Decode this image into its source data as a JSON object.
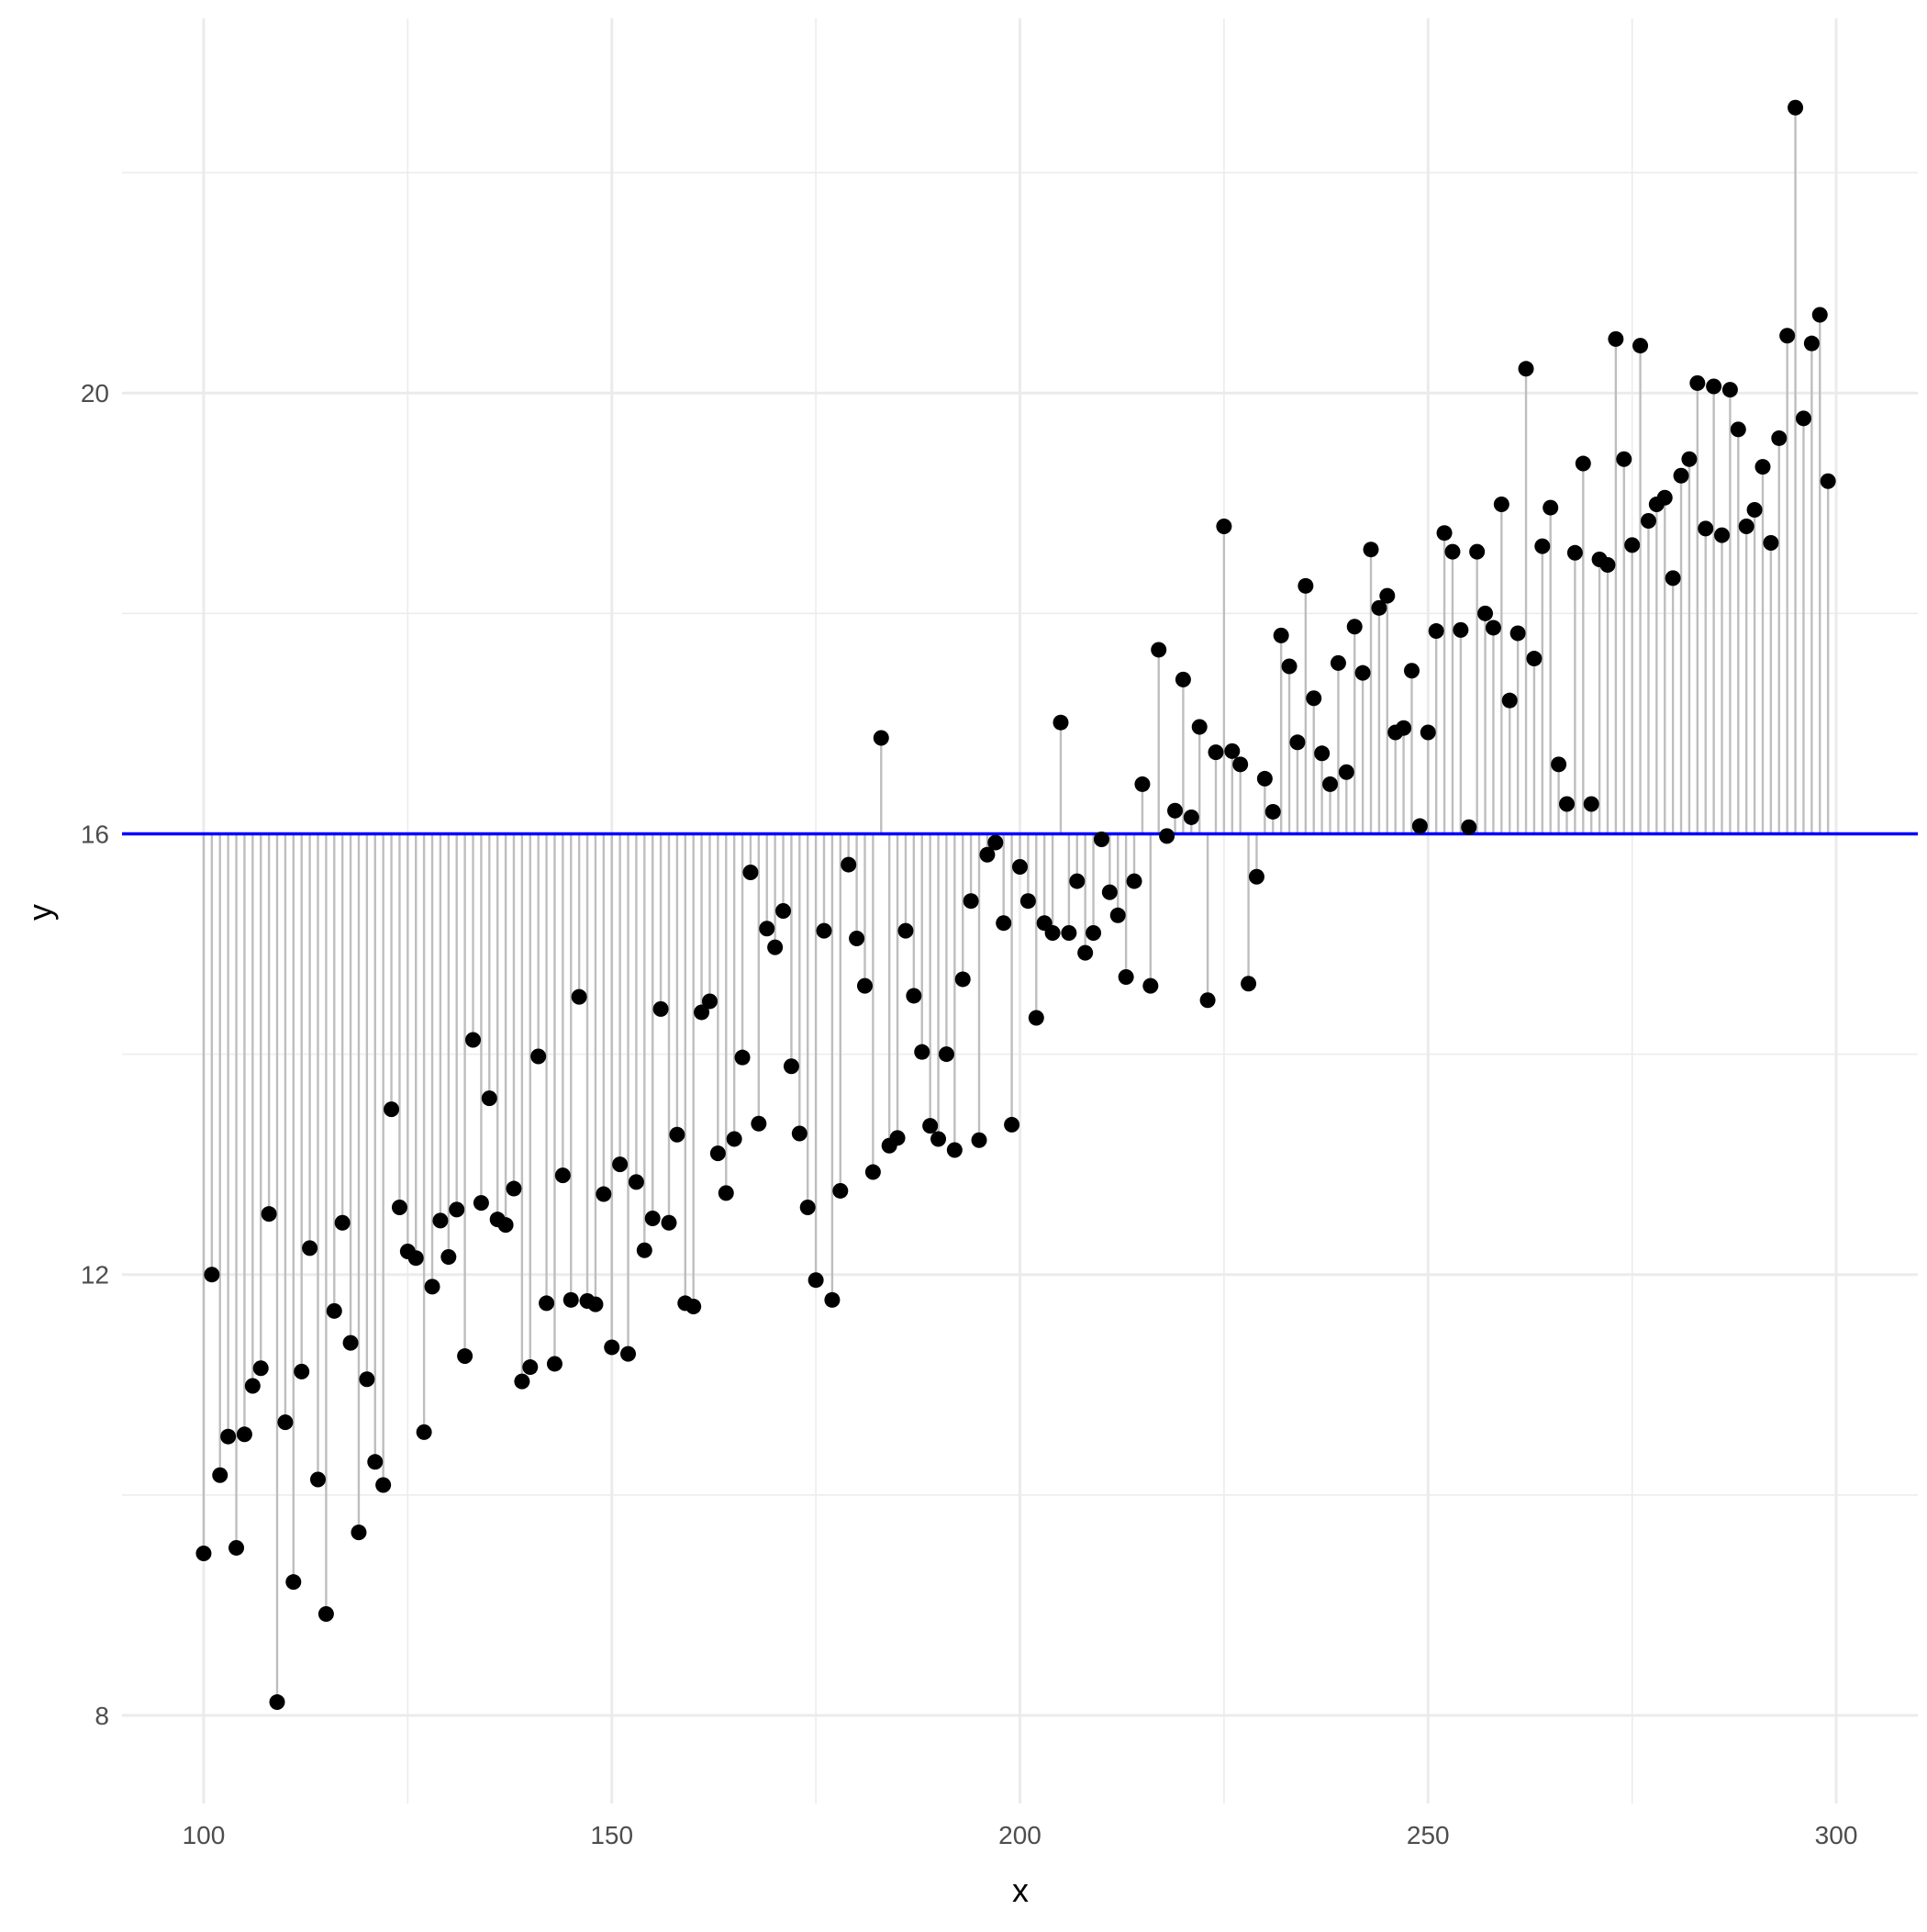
{
  "chart_data": {
    "type": "scatter",
    "title": "",
    "xlabel": "x",
    "ylabel": "y",
    "xlim": [
      90,
      310
    ],
    "ylim": [
      7.2,
      23.4
    ],
    "x_ticks": [
      100,
      150,
      200,
      250,
      300
    ],
    "y_ticks": [
      8,
      12,
      16,
      20
    ],
    "x_minor_ticks": [
      125,
      175,
      225,
      275
    ],
    "y_minor_ticks": [
      10,
      14,
      18,
      22
    ],
    "grid": true,
    "legend": "none",
    "baseline": 16,
    "baseline_color": "#0000ff",
    "point_color": "#000000",
    "stem_color": "#bebebe",
    "series": [
      {
        "x_start": 100,
        "x_step": 1,
        "values": [
          9.47,
          12.0,
          10.18,
          10.53,
          9.52,
          10.55,
          10.99,
          11.15,
          12.55,
          8.12,
          10.66,
          9.21,
          11.12,
          12.24,
          10.14,
          8.92,
          11.67,
          12.47,
          11.38,
          9.66,
          11.05,
          10.3,
          10.09,
          13.5,
          12.61,
          12.21,
          12.15,
          10.57,
          11.89,
          12.49,
          12.16,
          12.59,
          11.26,
          14.13,
          12.65,
          13.6,
          12.5,
          12.45,
          12.78,
          11.03,
          11.16,
          13.98,
          11.74,
          11.19,
          12.9,
          11.77,
          14.52,
          11.76,
          11.73,
          12.73,
          11.34,
          13.0,
          11.28,
          12.84,
          12.22,
          12.51,
          14.41,
          12.47,
          13.27,
          11.74,
          11.71,
          14.38,
          14.48,
          13.1,
          12.74,
          13.23,
          13.97,
          15.65,
          13.37,
          15.14,
          14.97,
          15.3,
          13.89,
          13.28,
          12.61,
          11.95,
          15.12,
          11.77,
          12.76,
          15.72,
          15.05,
          14.62,
          12.93,
          16.87,
          13.17,
          13.24,
          15.12,
          14.53,
          14.02,
          13.35,
          13.23,
          14.0,
          13.13,
          14.68,
          15.39,
          13.22,
          15.81,
          15.92,
          15.19,
          13.36,
          15.7,
          15.39,
          14.33,
          15.19,
          15.1,
          17.01,
          15.1,
          15.57,
          14.92,
          15.1,
          15.95,
          15.47,
          15.26,
          14.7,
          15.57,
          16.45,
          14.62,
          17.67,
          15.98,
          16.21,
          17.4,
          16.15,
          16.97,
          14.49,
          16.74,
          18.79,
          16.75,
          16.63,
          14.64,
          15.61,
          16.5,
          16.2,
          17.8,
          17.52,
          16.83,
          18.25,
          17.23,
          16.73,
          16.45,
          17.55,
          16.56,
          17.88,
          17.46,
          18.58,
          18.05,
          18.16,
          16.92,
          16.96,
          17.48,
          16.07,
          16.92,
          17.84,
          18.73,
          18.56,
          17.85,
          16.06,
          18.56,
          18.0,
          17.87,
          18.99,
          17.21,
          17.82,
          20.22,
          17.59,
          18.61,
          18.96,
          16.63,
          16.27,
          18.55,
          19.36,
          16.27,
          18.49,
          18.44,
          20.49,
          19.4,
          18.62,
          20.43,
          18.84,
          18.99,
          19.05,
          18.32,
          19.25,
          19.4,
          20.09,
          18.77,
          20.06,
          18.71,
          20.03,
          19.67,
          18.79,
          18.94,
          19.33,
          18.64,
          19.59,
          20.52,
          22.59,
          19.77,
          20.45,
          20.71,
          19.2
        ]
      }
    ]
  }
}
